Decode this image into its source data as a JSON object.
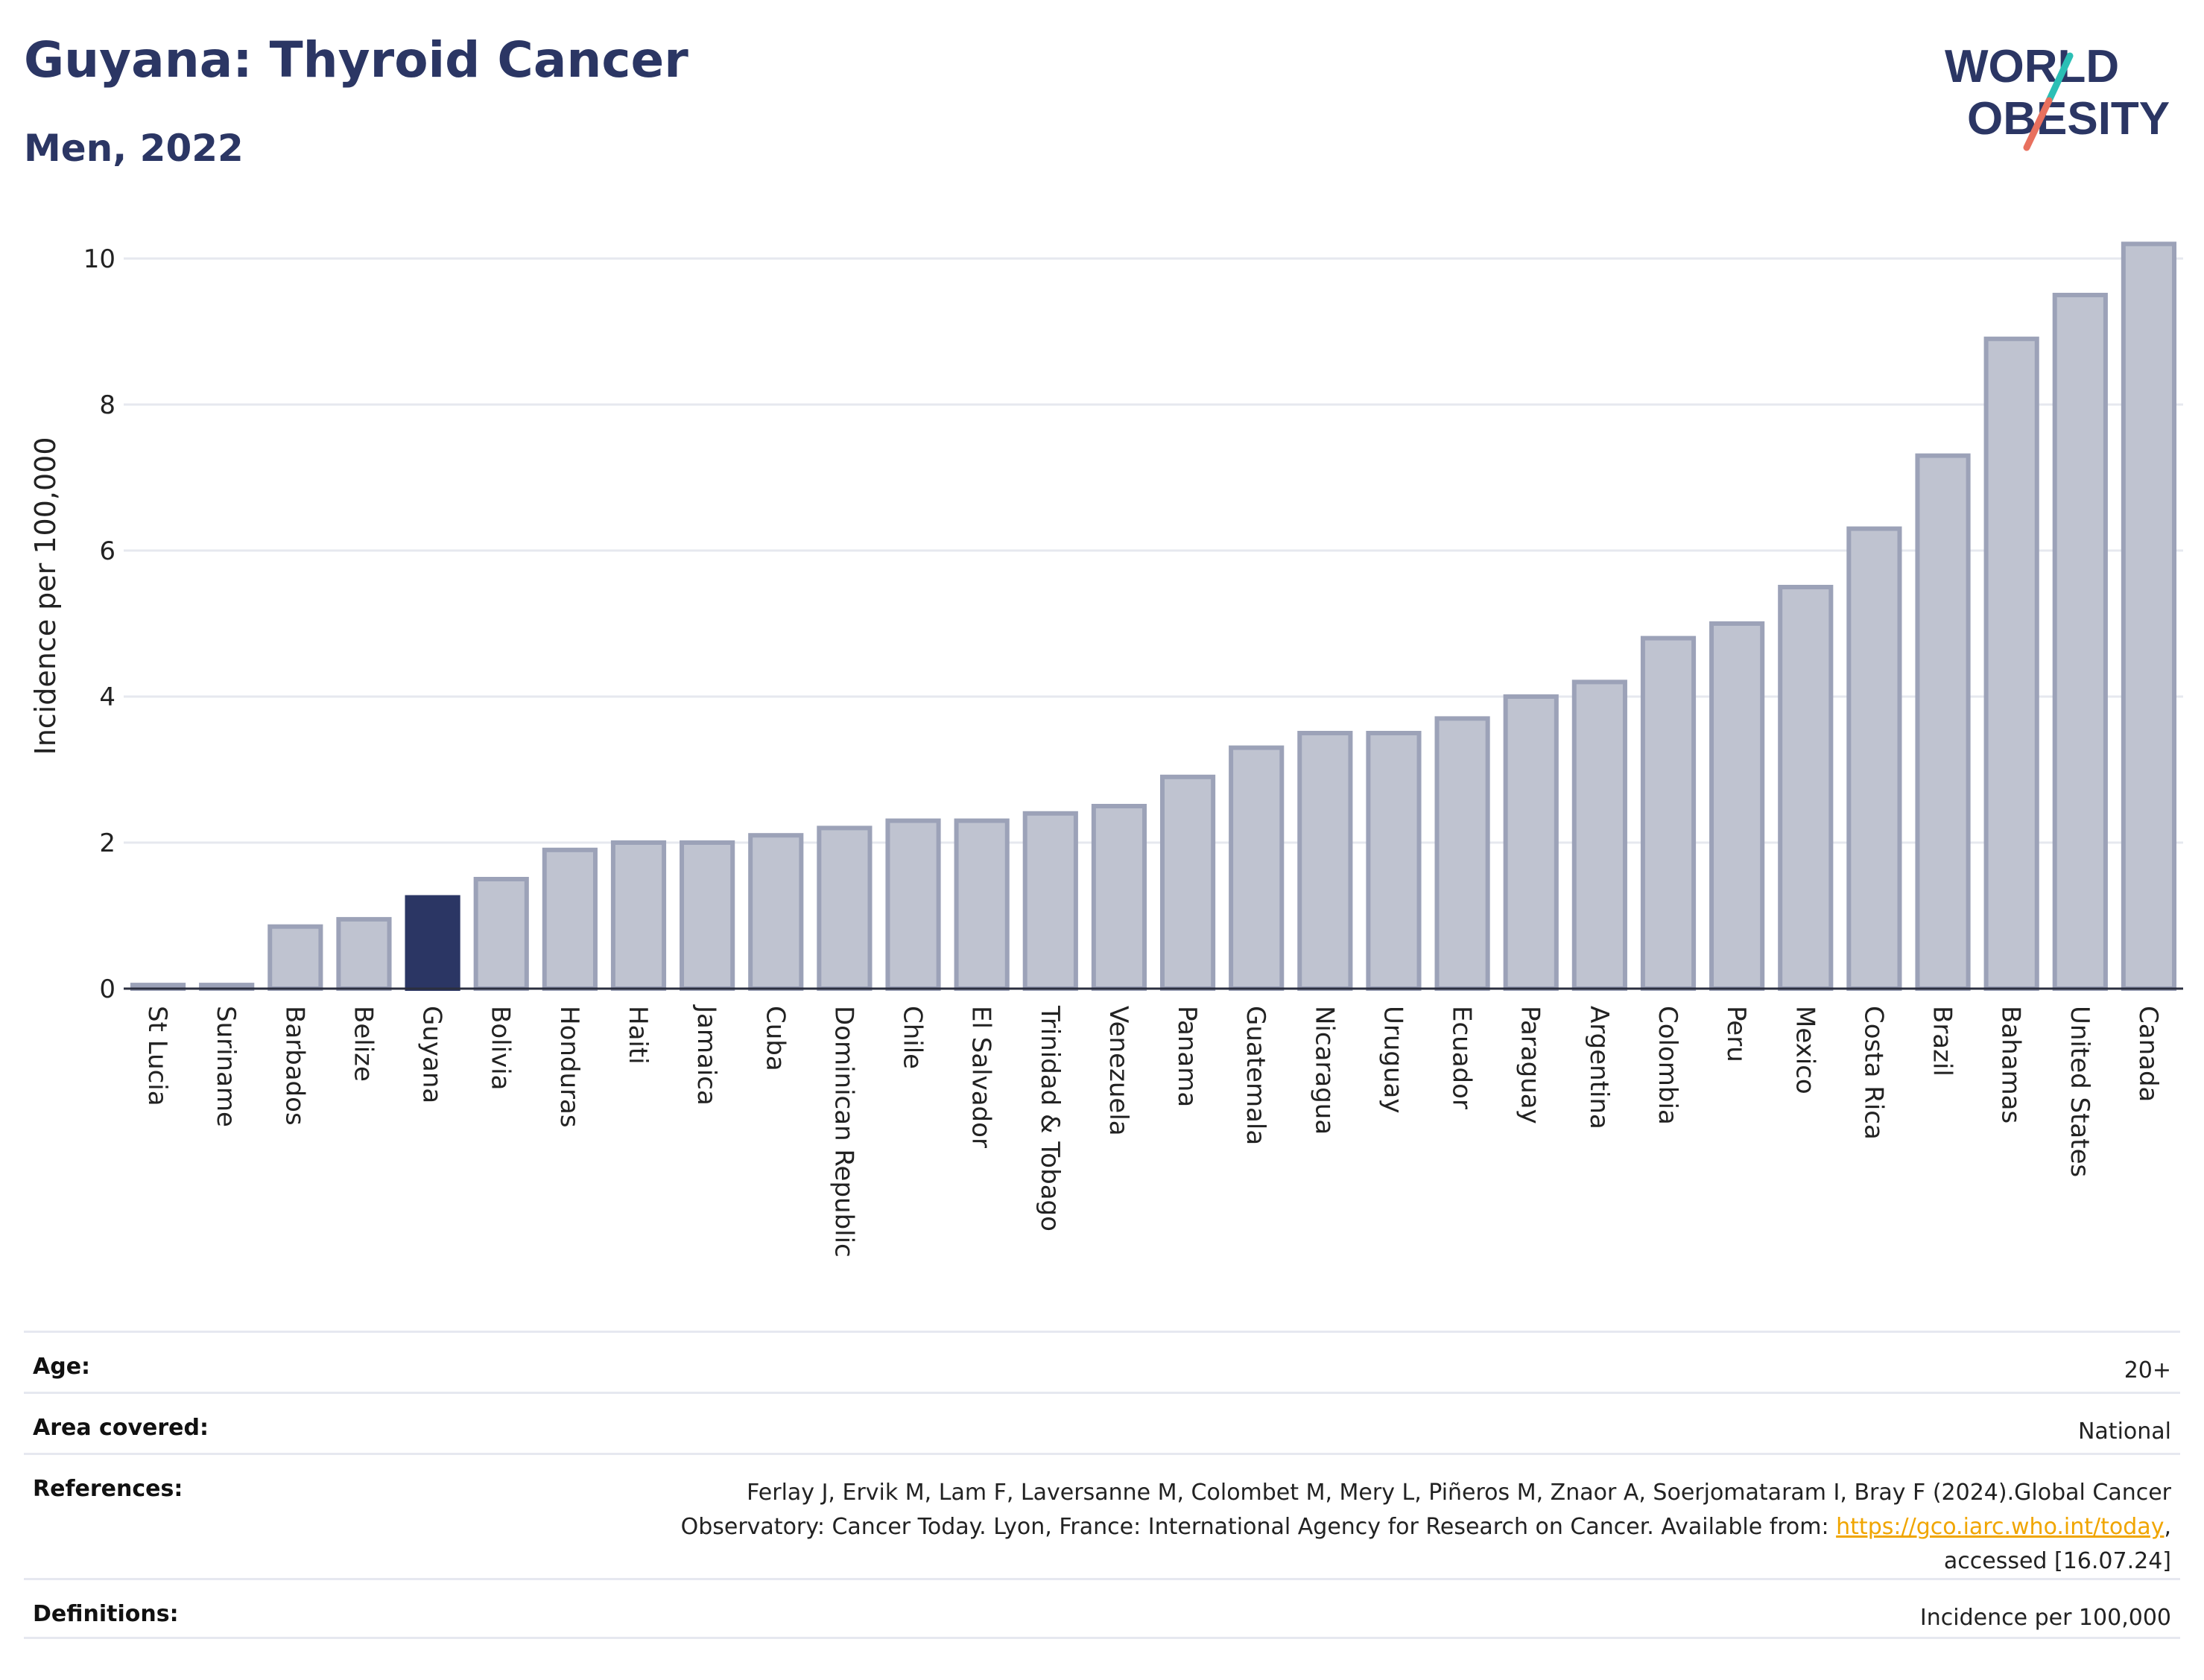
{
  "header": {
    "title": "Guyana: Thyroid Cancer",
    "subtitle": "Men, 2022"
  },
  "logo": {
    "line1": "WORLD",
    "line2": "OBESITY"
  },
  "colors": {
    "highlight": "#2b3664",
    "bar": "#bfc3d0",
    "bar_stroke": "#9ca2b8",
    "accent_teal": "#2bbfb5",
    "accent_coral": "#e8705e",
    "link": "#f0a500"
  },
  "chart_data": {
    "type": "bar",
    "title": "Guyana: Thyroid Cancer",
    "subtitle": "Men, 2022",
    "xlabel": "",
    "ylabel": "Incidence per 100,000",
    "ylim": [
      0,
      10.5
    ],
    "yticks": [
      0,
      2,
      4,
      6,
      8,
      10
    ],
    "grid": true,
    "highlight": "Guyana",
    "categories": [
      "St Lucia",
      "Suriname",
      "Barbados",
      "Belize",
      "Guyana",
      "Bolivia",
      "Honduras",
      "Haiti",
      "Jamaica",
      "Cuba",
      "Dominican Republic",
      "Chile",
      "El Salvador",
      "Trinidad & Tobago",
      "Venezuela",
      "Panama",
      "Guatemala",
      "Nicaragua",
      "Uruguay",
      "Ecuador",
      "Paraguay",
      "Argentina",
      "Colombia",
      "Peru",
      "Mexico",
      "Costa Rica",
      "Brazil",
      "Bahamas",
      "United States",
      "Canada"
    ],
    "values": [
      0.05,
      0.05,
      0.85,
      0.95,
      1.25,
      1.5,
      1.9,
      2.0,
      2.0,
      2.1,
      2.2,
      2.3,
      2.3,
      2.4,
      2.5,
      2.9,
      3.3,
      3.5,
      3.5,
      3.7,
      4.0,
      4.2,
      4.8,
      5.0,
      5.5,
      6.3,
      7.3,
      8.9,
      9.5,
      10.2
    ]
  },
  "meta": {
    "rows": [
      {
        "label": "Age:",
        "value": "20+"
      },
      {
        "label": "Area covered:",
        "value": "National"
      },
      {
        "label": "References:",
        "value_line1": "Ferlay J, Ervik M, Lam F, Laversanne M, Colombet M, Mery L, Piñeros M, Znaor A, Soerjomataram I, Bray F (2024).Global Cancer",
        "value_line2_pre": "Observatory: Cancer Today. Lyon, France: International Agency for Research on Cancer. Available from: ",
        "link": "https://gco.iarc.who.int/today",
        "value_line2_post": ",",
        "value_line3": "accessed [16.07.24]"
      },
      {
        "label": "Definitions:",
        "value": "Incidence per 100,000"
      }
    ]
  }
}
